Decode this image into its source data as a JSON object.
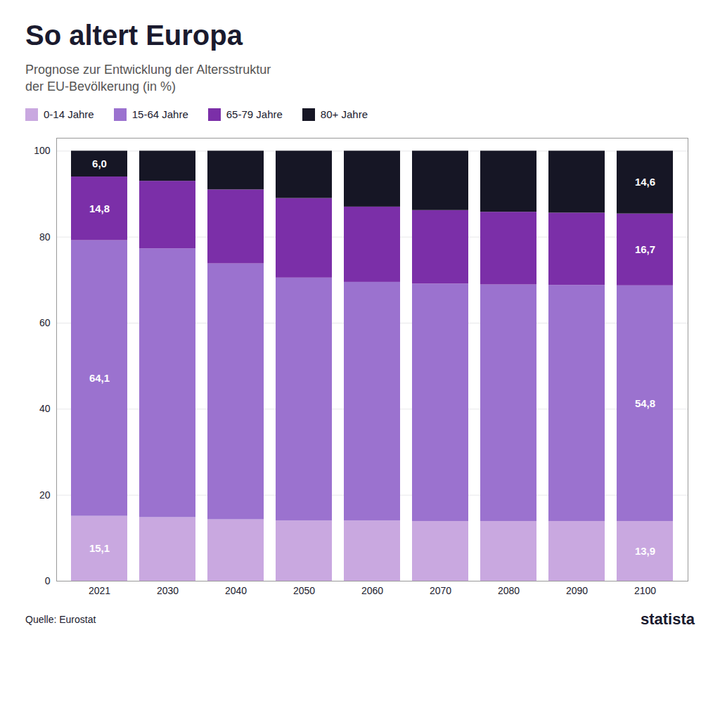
{
  "chart_data": {
    "type": "bar",
    "title": "So altert Europa",
    "subtitle": "Prognose zur Entwicklung der Altersstruktur\nder EU-Bevölkerung (in %)",
    "source": "Quelle: Eurostat",
    "annotations": [
      "statista"
    ],
    "categories": [
      "2021",
      "2030",
      "2040",
      "2050",
      "2060",
      "2070",
      "2080",
      "2090",
      "2100"
    ],
    "series": [
      {
        "name": "0-14 Jahre",
        "color": "#c9a8e0",
        "values": [
          15.1,
          14.8,
          14.3,
          14.0,
          14.0,
          13.9,
          13.9,
          13.9,
          13.9
        ],
        "value_labels": [
          "15,1",
          null,
          null,
          null,
          null,
          null,
          null,
          null,
          "13,9"
        ]
      },
      {
        "name": "15-64 Jahre",
        "color": "#9b72cf",
        "values": [
          64.1,
          62.5,
          59.5,
          56.5,
          55.5,
          55.2,
          55.0,
          54.9,
          54.8
        ],
        "value_labels": [
          "64,1",
          null,
          null,
          null,
          null,
          null,
          null,
          null,
          "54,8"
        ]
      },
      {
        "name": "65-79 Jahre",
        "color": "#7b2fa8",
        "values": [
          14.8,
          15.7,
          17.2,
          18.5,
          17.5,
          17.1,
          16.9,
          16.8,
          16.7
        ],
        "value_labels": [
          "14,8",
          null,
          null,
          null,
          null,
          null,
          null,
          null,
          "16,7"
        ]
      },
      {
        "name": "80+ Jahre",
        "color": "#161625",
        "values": [
          6.0,
          7.0,
          9.0,
          11.0,
          13.0,
          13.8,
          14.2,
          14.4,
          14.6
        ],
        "value_labels": [
          "6,0",
          null,
          null,
          null,
          null,
          null,
          null,
          null,
          "14,6"
        ]
      }
    ],
    "stacked": true,
    "data_labels": true,
    "ylim": [
      0,
      103
    ],
    "yticks": [
      0,
      20,
      40,
      60,
      80,
      100
    ],
    "grid": true,
    "legend": "top-left"
  }
}
